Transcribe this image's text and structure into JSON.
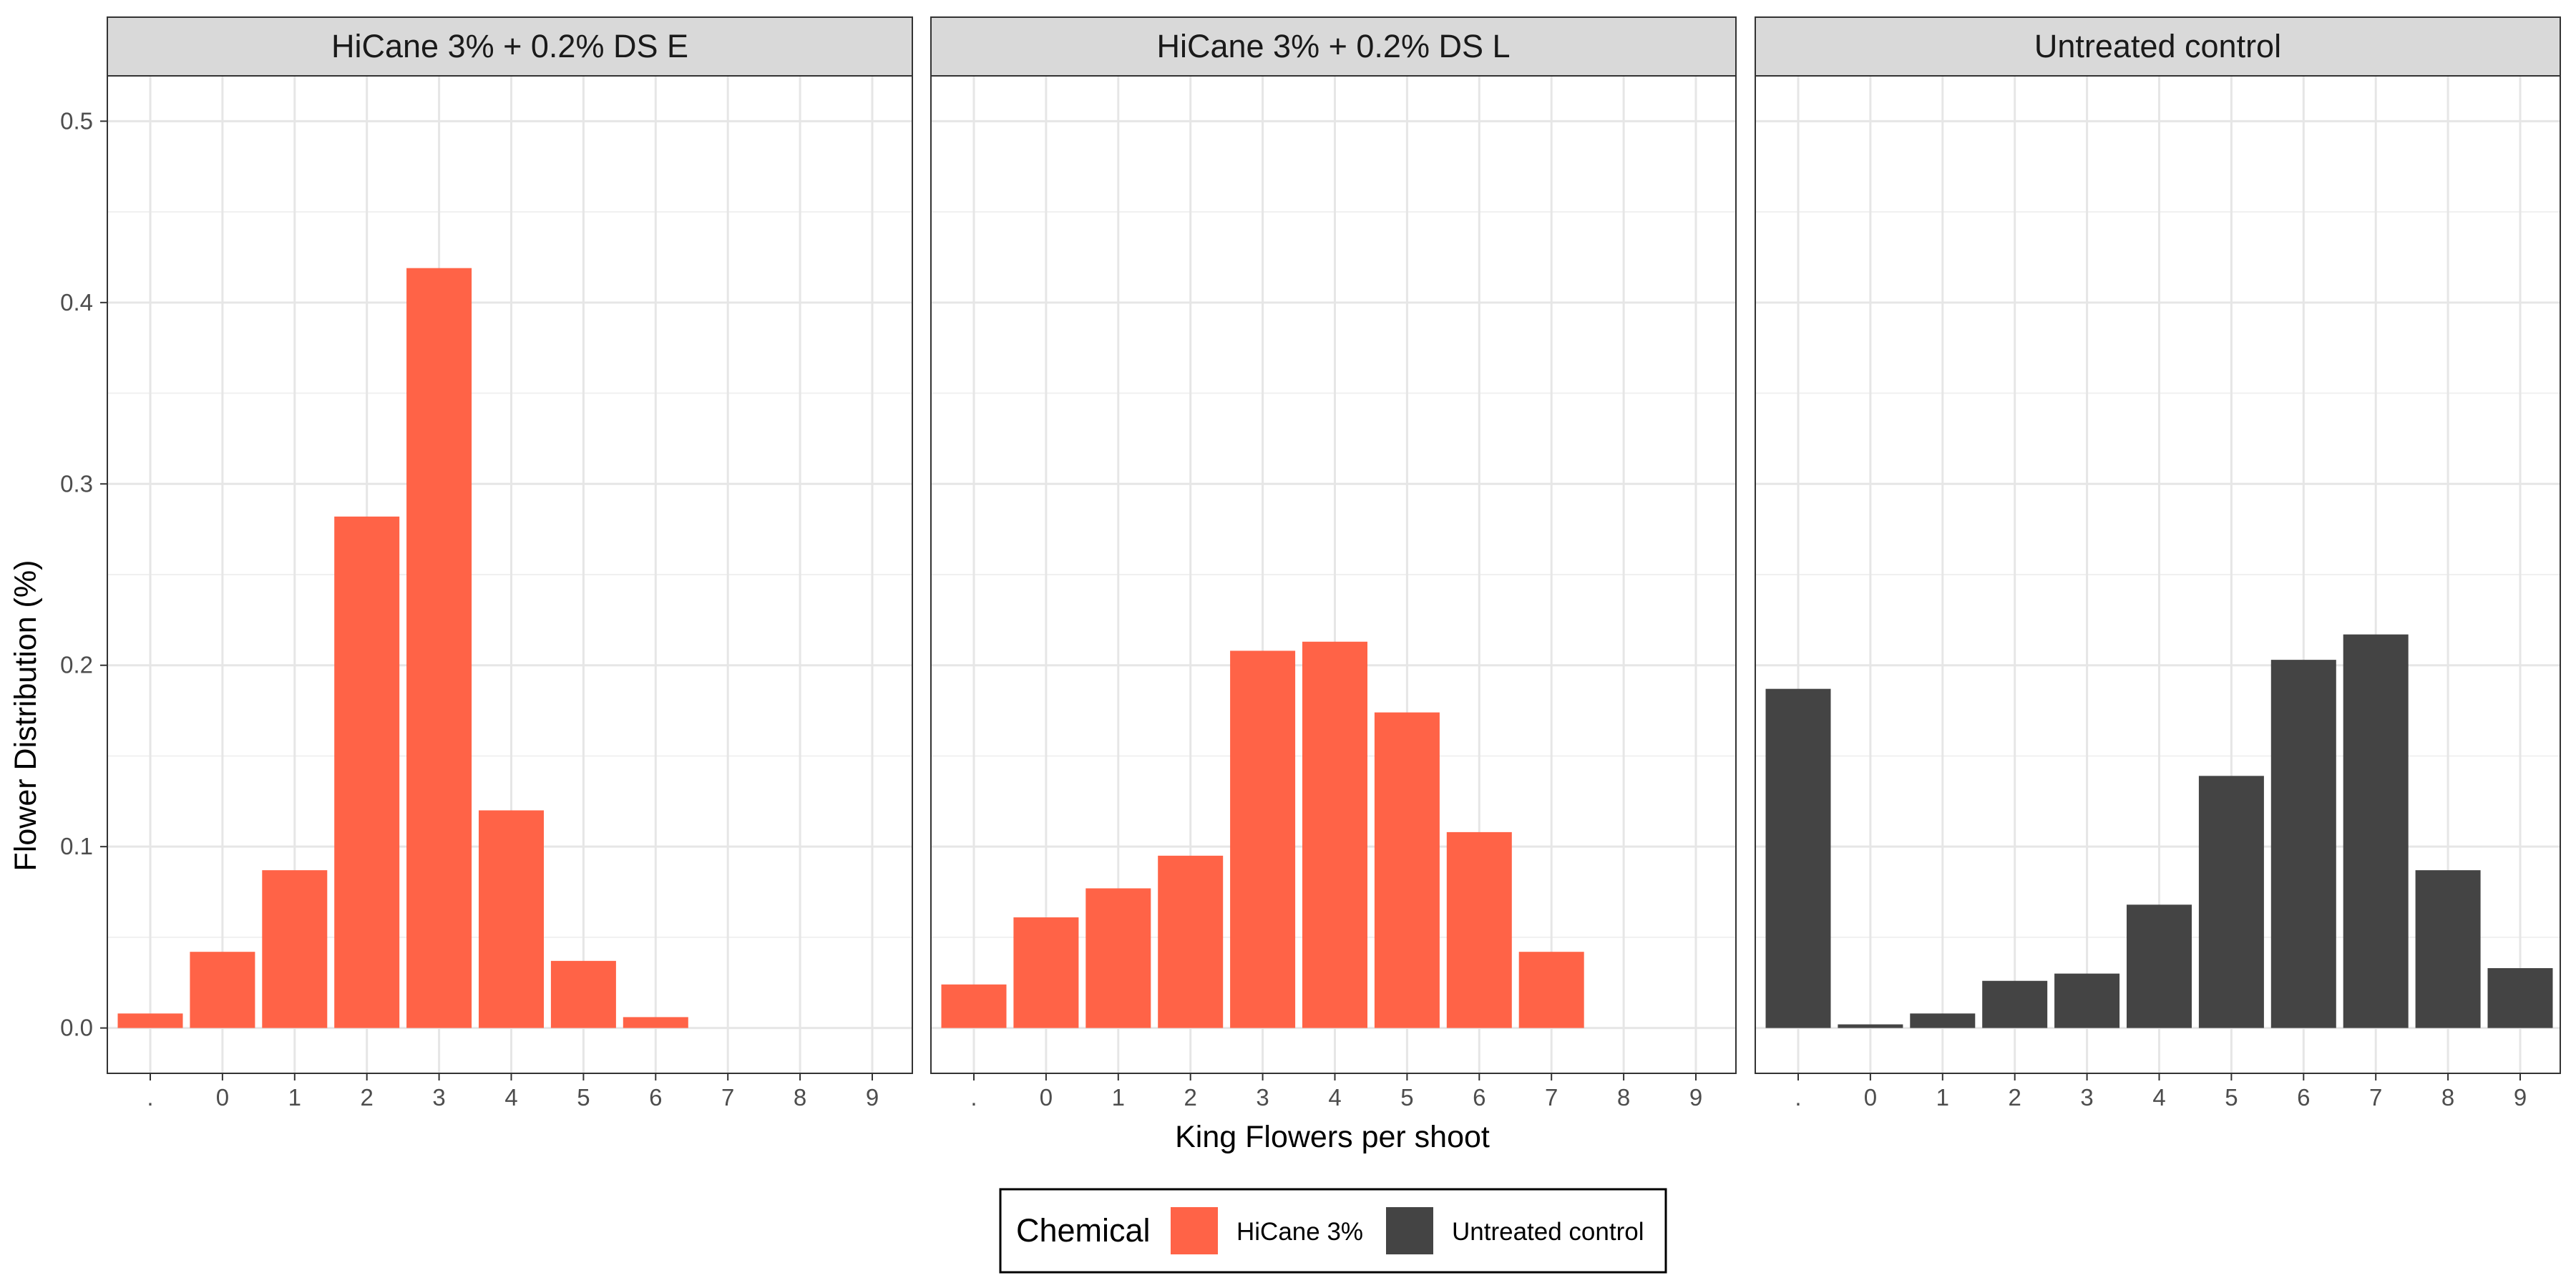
{
  "chart_data": {
    "type": "bar",
    "layout": "facets",
    "xlabel": "King Flowers per shoot",
    "ylabel": "Flower Distribution (%)",
    "ylim": [
      -0.025,
      0.525
    ],
    "yticks": [
      "0.0",
      "0.1",
      "0.2",
      "0.3",
      "0.4",
      "0.5"
    ],
    "categories": [
      ".",
      "0",
      "1",
      "2",
      "3",
      "4",
      "5",
      "6",
      "7",
      "8",
      "9"
    ],
    "grid": true,
    "legend": {
      "title": "Chemical",
      "position": "bottom",
      "items": [
        {
          "label": "HiCane 3%",
          "color": "#FF6347"
        },
        {
          "label": "Untreated control",
          "color": "#444444"
        }
      ]
    },
    "facets": [
      {
        "title": "HiCane 3% + 0.2% DS E",
        "series": "HiCane 3%",
        "color": "#FF6347",
        "values": [
          0.008,
          0.042,
          0.087,
          0.282,
          0.419,
          0.12,
          0.037,
          0.006,
          null,
          null,
          null
        ]
      },
      {
        "title": "HiCane 3% + 0.2% DS L",
        "series": "HiCane 3%",
        "color": "#FF6347",
        "values": [
          0.024,
          0.061,
          0.077,
          0.095,
          0.208,
          0.213,
          0.174,
          0.108,
          0.042,
          null,
          null
        ]
      },
      {
        "title": "Untreated control",
        "series": "Untreated control",
        "color": "#444444",
        "values": [
          0.187,
          0.002,
          0.008,
          0.026,
          0.03,
          0.068,
          0.139,
          0.203,
          0.217,
          0.087,
          0.033
        ]
      }
    ]
  }
}
